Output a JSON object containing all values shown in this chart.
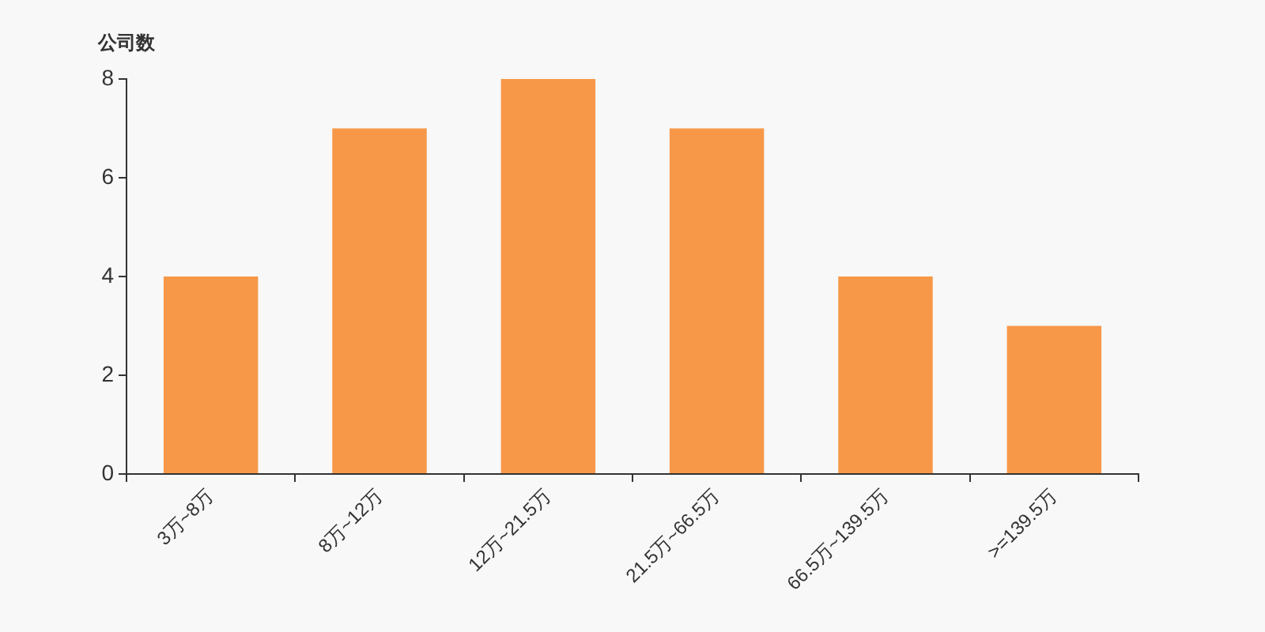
{
  "chart_data": {
    "type": "bar",
    "ylabel": "公司数",
    "categories": [
      "3万~8万",
      "8万~12万",
      "12万~21.5万",
      "21.5万~66.5万",
      "66.5万~139.5万",
      ">=139.5万"
    ],
    "values": [
      4,
      7,
      8,
      7,
      4,
      3
    ],
    "color": "#f79849",
    "ylim": [
      0,
      8
    ],
    "yticks": [
      0,
      2,
      4,
      6,
      8
    ],
    "grid": false,
    "legend": false
  }
}
